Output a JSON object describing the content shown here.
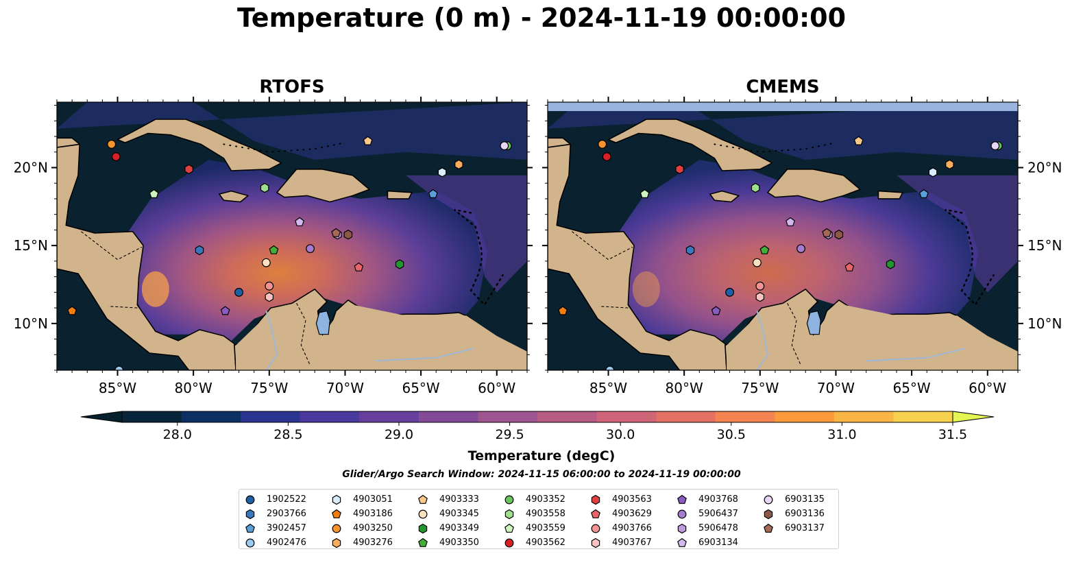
{
  "title": "Temperature (0 m) - 2024-11-19 00:00:00",
  "panels": [
    {
      "title": "RTOFS",
      "has_top_band": false
    },
    {
      "title": "CMEMS",
      "has_top_band": true
    }
  ],
  "map": {
    "lon_range": [
      -89,
      -58
    ],
    "lat_range": [
      7,
      24.2
    ],
    "lon_ticks": [
      {
        "value": -85,
        "label": "85°W"
      },
      {
        "value": -80,
        "label": "80°W"
      },
      {
        "value": -75,
        "label": "75°W"
      },
      {
        "value": -70,
        "label": "70°W"
      },
      {
        "value": -65,
        "label": "65°W"
      },
      {
        "value": -60,
        "label": "60°W"
      }
    ],
    "lat_ticks": [
      {
        "value": 10,
        "label": "10°N"
      },
      {
        "value": 15,
        "label": "15°N"
      },
      {
        "value": 20,
        "label": "20°N"
      }
    ],
    "land_color": "#d2b48c",
    "lake_color": "#8fb3e0",
    "deep_color": "#0a2230"
  },
  "colorbar": {
    "label": "Temperature (degC)",
    "min": 27.75,
    "max": 31.5,
    "ticks": [
      "28.0",
      "28.5",
      "29.0",
      "29.5",
      "30.0",
      "30.5",
      "31.0",
      "31.5"
    ],
    "tick_values": [
      28.0,
      28.5,
      29.0,
      29.5,
      30.0,
      30.5,
      31.0,
      31.5
    ],
    "colors": [
      "#09253a",
      "#0c3064",
      "#2a3590",
      "#4a3a9e",
      "#673f9e",
      "#844a98",
      "#9e5590",
      "#b75c84",
      "#cf6577",
      "#e47064",
      "#f38350",
      "#fa9a3d",
      "#fab645",
      "#f6d14d"
    ],
    "under_color": "#06202d",
    "over_color": "#e4f554"
  },
  "window_note": "Glider/Argo Search Window: 2024-11-15 06:00:00 to 2024-11-19 00:00:00",
  "legend": [
    {
      "id": "1902522",
      "marker": "circle",
      "color": "#1f5fa6"
    },
    {
      "id": "2903766",
      "marker": "hexagon",
      "color": "#3a78bd"
    },
    {
      "id": "3902457",
      "marker": "pentagon",
      "color": "#5aa0d8"
    },
    {
      "id": "4902476",
      "marker": "circle",
      "color": "#9ccaf0"
    },
    {
      "id": "4903051",
      "marker": "hexagon",
      "color": "#d8ecfb"
    },
    {
      "id": "4903186",
      "marker": "pentagon",
      "color": "#f07f10"
    },
    {
      "id": "4903250",
      "marker": "circle",
      "color": "#f5932e"
    },
    {
      "id": "4903276",
      "marker": "hexagon",
      "color": "#f8ad5e"
    },
    {
      "id": "4903333",
      "marker": "pentagon",
      "color": "#fbc88c"
    },
    {
      "id": "4903345",
      "marker": "circle",
      "color": "#fde2c0"
    },
    {
      "id": "4903349",
      "marker": "hexagon",
      "color": "#23962e"
    },
    {
      "id": "4903350",
      "marker": "pentagon",
      "color": "#44ad3a"
    },
    {
      "id": "4903352",
      "marker": "circle",
      "color": "#6cc460"
    },
    {
      "id": "4903558",
      "marker": "hexagon",
      "color": "#9ede8c"
    },
    {
      "id": "4903559",
      "marker": "pentagon",
      "color": "#cdf5bd"
    },
    {
      "id": "4903562",
      "marker": "circle",
      "color": "#d62026"
    },
    {
      "id": "4903563",
      "marker": "hexagon",
      "color": "#e0403f"
    },
    {
      "id": "4903629",
      "marker": "pentagon",
      "color": "#e9656b"
    },
    {
      "id": "4903766",
      "marker": "circle",
      "color": "#f39494"
    },
    {
      "id": "4903767",
      "marker": "hexagon",
      "color": "#f9c3c3"
    },
    {
      "id": "4903768",
      "marker": "pentagon",
      "color": "#8a5cc0"
    },
    {
      "id": "5906437",
      "marker": "circle",
      "color": "#a67ccf"
    },
    {
      "id": "5906478",
      "marker": "hexagon",
      "color": "#bf9be0"
    },
    {
      "id": "6903134",
      "marker": "pentagon",
      "color": "#d3b8ee"
    },
    {
      "id": "6903135",
      "marker": "circle",
      "color": "#e8d5f7"
    },
    {
      "id": "6903136",
      "marker": "hexagon",
      "color": "#8a5a47"
    },
    {
      "id": "6903137",
      "marker": "pentagon",
      "color": "#a56a56"
    }
  ],
  "floats": [
    {
      "id": "1902522",
      "lon": -77.0,
      "lat": 12.0
    },
    {
      "id": "2903766",
      "lon": -79.6,
      "lat": 14.7
    },
    {
      "id": "3902457",
      "lon": -64.2,
      "lat": 18.3
    },
    {
      "id": "4902476",
      "lon": -84.9,
      "lat": 7.0
    },
    {
      "id": "4903051",
      "lon": -63.6,
      "lat": 19.7
    },
    {
      "id": "4903186",
      "lon": -88.0,
      "lat": 10.8
    },
    {
      "id": "4903250",
      "lon": -85.4,
      "lat": 21.5
    },
    {
      "id": "4903276",
      "lon": -62.5,
      "lat": 20.2
    },
    {
      "id": "4903333",
      "lon": -68.5,
      "lat": 21.7
    },
    {
      "id": "4903345",
      "lon": -75.2,
      "lat": 13.9
    },
    {
      "id": "4903349",
      "lon": -66.4,
      "lat": 13.8
    },
    {
      "id": "4903350",
      "lon": -74.7,
      "lat": 14.7
    },
    {
      "id": "4903352",
      "lon": -59.3,
      "lat": 21.4
    },
    {
      "id": "4903558",
      "lon": -75.3,
      "lat": 18.7
    },
    {
      "id": "4903559",
      "lon": -82.6,
      "lat": 18.3
    },
    {
      "id": "4903562",
      "lon": -85.1,
      "lat": 20.7
    },
    {
      "id": "4903563",
      "lon": -80.3,
      "lat": 19.9
    },
    {
      "id": "4903629",
      "lon": -69.1,
      "lat": 13.6
    },
    {
      "id": "4903766",
      "lon": -75.0,
      "lat": 12.4
    },
    {
      "id": "4903767",
      "lon": -75.0,
      "lat": 11.7
    },
    {
      "id": "4903768",
      "lon": -77.9,
      "lat": 10.8
    },
    {
      "id": "5906437",
      "lon": -72.3,
      "lat": 14.8
    },
    {
      "id": "5906478",
      "lon": -70.5,
      "lat": 15.7
    },
    {
      "id": "6903134",
      "lon": -73.0,
      "lat": 16.5
    },
    {
      "id": "6903135",
      "lon": -59.5,
      "lat": 21.4
    },
    {
      "id": "6903136",
      "lon": -69.8,
      "lat": 15.7
    },
    {
      "id": "6903137",
      "lon": -70.6,
      "lat": 15.8
    }
  ]
}
